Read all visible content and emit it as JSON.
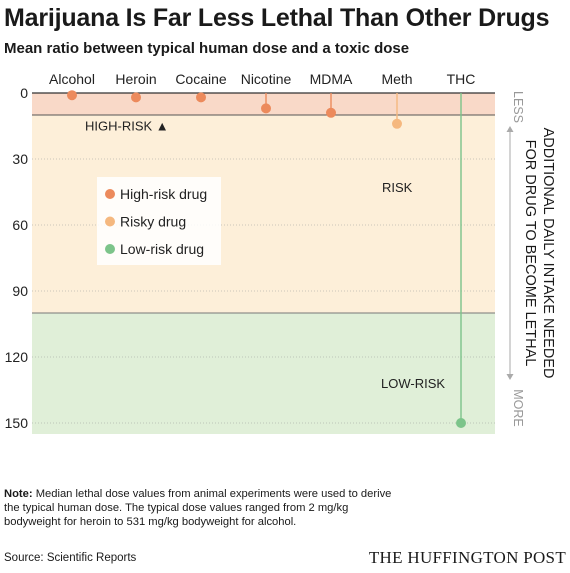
{
  "header": {
    "title": "Marijuana Is Far Less Lethal Than Other Drugs",
    "subtitle": "Mean ratio between typical human dose and a toxic dose"
  },
  "chart_data": {
    "type": "scatter",
    "categories": [
      "Alcohol",
      "Heroin",
      "Cocaine",
      "Nicotine",
      "MDMA",
      "Meth",
      "THC"
    ],
    "values": [
      1,
      2,
      2,
      7,
      9,
      14,
      150
    ],
    "risk_levels": [
      "high",
      "high",
      "high",
      "high",
      "high",
      "risky",
      "low"
    ],
    "ylim": [
      0,
      155
    ],
    "yticks": [
      0,
      30,
      60,
      90,
      120,
      150
    ],
    "y_reversed": true,
    "zones": [
      {
        "label": "HIGH-RISK",
        "from": 0,
        "to": 10,
        "color": "#f9d9c8"
      },
      {
        "label": "RISK",
        "from": 10,
        "to": 100,
        "color": "#fdefd9"
      },
      {
        "label": "LOW-RISK",
        "from": 100,
        "to": 155,
        "color": "#e0efd8"
      }
    ],
    "high_risk_marker": "▲",
    "legend": {
      "placement": "left",
      "items": [
        {
          "label": "High-risk drug",
          "color": "#ec8a5c"
        },
        {
          "label": "Risky drug",
          "color": "#f5b87f"
        },
        {
          "label": "Low-risk drug",
          "color": "#7cc48a"
        }
      ]
    },
    "side_axis": {
      "top": "LESS",
      "bottom": "MORE",
      "label_line1": "ADDITIONAL DAILY INTAKE NEEDED",
      "label_line2": "FOR DRUG TO BECOME LETHAL"
    }
  },
  "colors": {
    "high": "#ec8a5c",
    "risky": "#f5b87f",
    "low": "#7cc48a",
    "grid": "#9a9a9a"
  },
  "footer": {
    "note_label": "Note:",
    "note_text": "Median lethal dose values from animal experiments were used to derive the typical human dose. The typical dose values ranged from 2 mg/kg bodyweight for heroin to 531 mg/kg bodyweight for alcohol.",
    "source": "Source: Scientific Reports",
    "brand": "THE HUFFINGTON POST"
  }
}
